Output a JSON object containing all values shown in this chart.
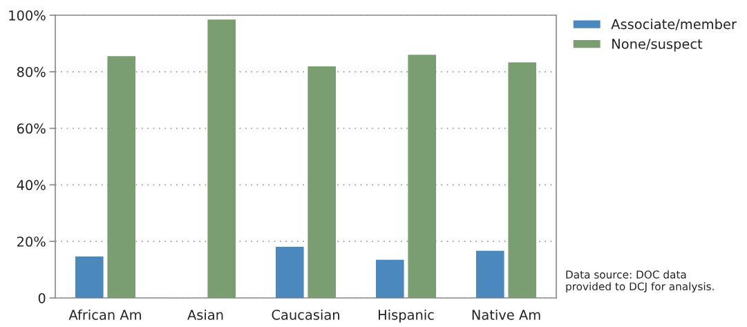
{
  "chart_data": {
    "type": "bar",
    "categories": [
      "African Am",
      "Asian",
      "Caucasian",
      "Hispanic",
      "Native Am"
    ],
    "series": [
      {
        "name": "Associate/member",
        "color": "#4a88bd",
        "values": [
          14.7,
          null,
          18.1,
          13.5,
          16.7
        ]
      },
      {
        "name": "None/suspect",
        "color": "#7a9e72",
        "values": [
          85.5,
          98.5,
          81.9,
          86.0,
          83.3
        ]
      }
    ],
    "ylim": [
      0,
      100
    ],
    "yticks": [
      {
        "value": 0,
        "label": "0"
      },
      {
        "value": 20,
        "label": "20%"
      },
      {
        "value": 40,
        "label": "40%"
      },
      {
        "value": 60,
        "label": "60%"
      },
      {
        "value": 80,
        "label": "80%"
      },
      {
        "value": 100,
        "label": "100%"
      }
    ],
    "grid": "y",
    "legend": "top right",
    "annotations": [
      "Data source: DOC data\nprovided to DCJ for analysis."
    ]
  }
}
